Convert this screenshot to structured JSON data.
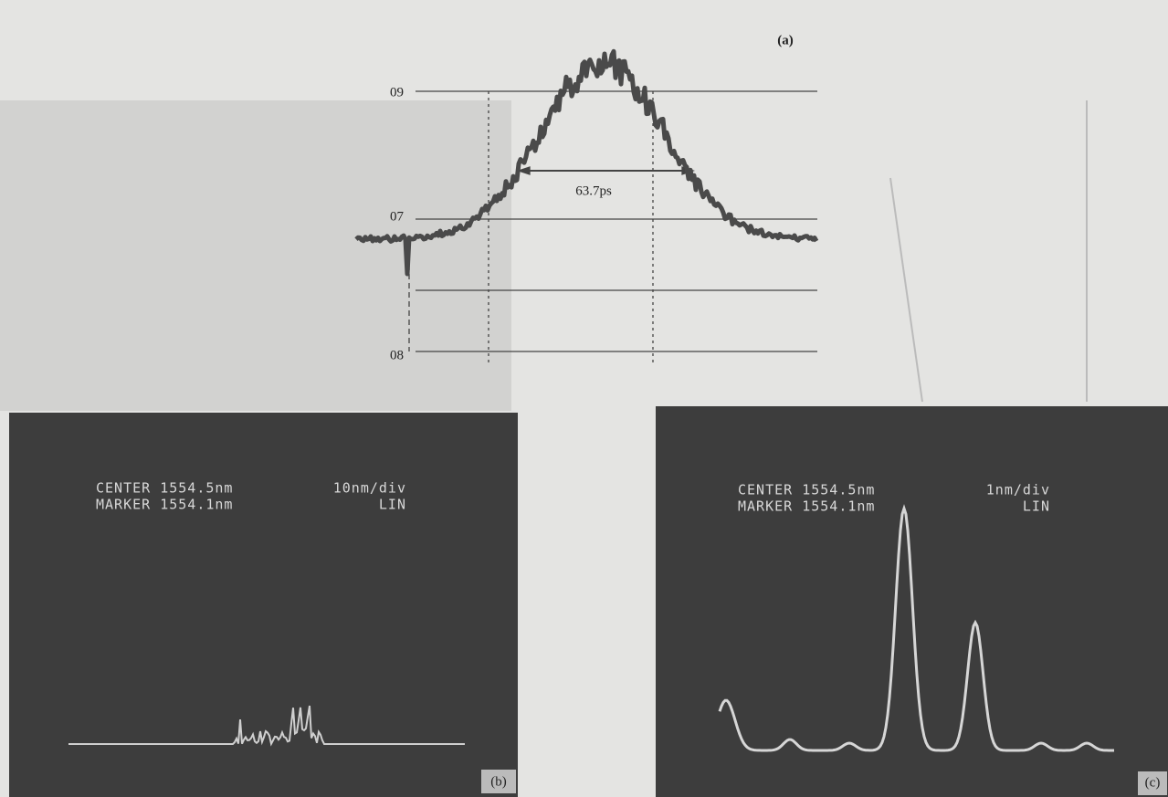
{
  "figure": {
    "panel_a": {
      "label": "(a)",
      "tick_top": "09",
      "tick_mid": "07",
      "tick_bottom": "08",
      "width_annotation": "63.7ps"
    },
    "panel_b": {
      "label": "(b)",
      "center": "CENTER 1554.5nm",
      "marker": "MARKER 1554.1nm",
      "scale": "10nm/div",
      "mode": "LIN"
    },
    "panel_c": {
      "label": "(c)",
      "center": "CENTER 1554.5nm",
      "marker": "MARKER 1554.1nm",
      "scale": "1nm/div",
      "mode": "LIN"
    }
  }
}
